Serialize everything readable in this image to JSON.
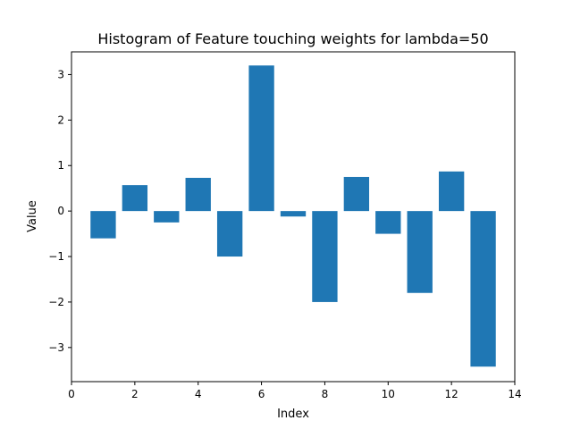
{
  "chart_data": {
    "type": "bar",
    "title": "Histogram of Feature touching weights for lambda=50",
    "xlabel": "Index",
    "ylabel": "Value",
    "x": [
      1,
      2,
      3,
      4,
      5,
      6,
      7,
      8,
      9,
      10,
      11,
      12,
      13
    ],
    "values": [
      -0.6,
      0.57,
      -0.25,
      0.73,
      -1.0,
      3.2,
      -0.12,
      -2.0,
      0.75,
      -0.5,
      -1.8,
      0.87,
      -3.42
    ],
    "bar_width": 0.8,
    "xlim": [
      0,
      14
    ],
    "ylim": [
      -3.75,
      3.5
    ],
    "xticks": [
      0,
      2,
      4,
      6,
      8,
      10,
      12,
      14
    ],
    "xtick_labels": [
      "0",
      "2",
      "4",
      "6",
      "8",
      "10",
      "12",
      "14"
    ],
    "yticks": [
      -3,
      -2,
      -1,
      0,
      1,
      2,
      3
    ],
    "ytick_labels": [
      "−3",
      "−2",
      "−1",
      "0",
      "1",
      "2",
      "3"
    ],
    "bar_color": "#1f77b4",
    "grid": false,
    "legend": "none"
  }
}
